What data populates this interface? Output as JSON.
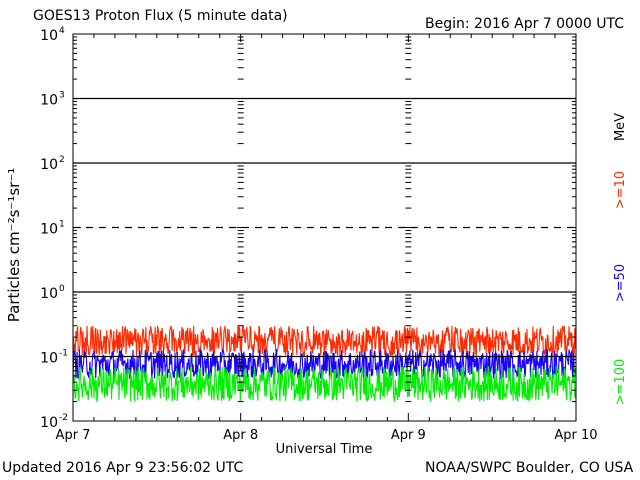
{
  "header": {
    "title": "GOES13 Proton Flux (5 minute data)",
    "begin": "Begin: 2016 Apr 7 0000 UTC"
  },
  "footer": {
    "updated": "Updated 2016 Apr  9 23:56:02 UTC",
    "credit": "NOAA/SWPC Boulder, CO USA"
  },
  "legend": {
    "unit": "MeV",
    "entries": [
      {
        "label": ">=10",
        "color": "#ff2a00"
      },
      {
        "label": ">=50",
        "color": "#1a00ff"
      },
      {
        "label": ">=100",
        "color": "#00ee00"
      }
    ]
  },
  "chart_data": {
    "type": "line",
    "title": "GOES13 Proton Flux (5 minute data)",
    "xlabel": "Universal Time",
    "ylabel": "Particles cm⁻²s⁻¹sr⁻¹",
    "yscale": "log",
    "ylim": [
      0.01,
      10000
    ],
    "xlim": [
      "2016-04-07 00:00",
      "2016-04-10 00:00"
    ],
    "x_ticks": [
      "Apr 7",
      "Apr 8",
      "Apr 9",
      "Apr 10"
    ],
    "y_ticks": [
      {
        "base": "10",
        "exp": "4",
        "value": 10000
      },
      {
        "base": "10",
        "exp": "3",
        "value": 1000
      },
      {
        "base": "10",
        "exp": "2",
        "value": 100
      },
      {
        "base": "10",
        "exp": "1",
        "value": 10
      },
      {
        "base": "10",
        "exp": "0",
        "value": 1
      },
      {
        "base": "10",
        "exp": "-1",
        "value": 0.1
      },
      {
        "base": "10",
        "exp": "-2",
        "value": 0.01
      }
    ],
    "threshold_lines": [
      {
        "value": 1000,
        "style": "solid"
      },
      {
        "value": 100,
        "style": "solid"
      },
      {
        "value": 10,
        "style": "dashed"
      },
      {
        "value": 1,
        "style": "solid"
      },
      {
        "value": 0.1,
        "style": "solid"
      }
    ],
    "series": [
      {
        "name": ">=10 MeV",
        "color": "#ff2a00",
        "typical_range": [
          0.1,
          0.3
        ]
      },
      {
        "name": ">=50 MeV",
        "color": "#1a00ff",
        "typical_range": [
          0.045,
          0.13
        ]
      },
      {
        "name": ">=100 MeV",
        "color": "#00ee00",
        "typical_range": [
          0.02,
          0.07
        ]
      }
    ],
    "grid": false
  }
}
